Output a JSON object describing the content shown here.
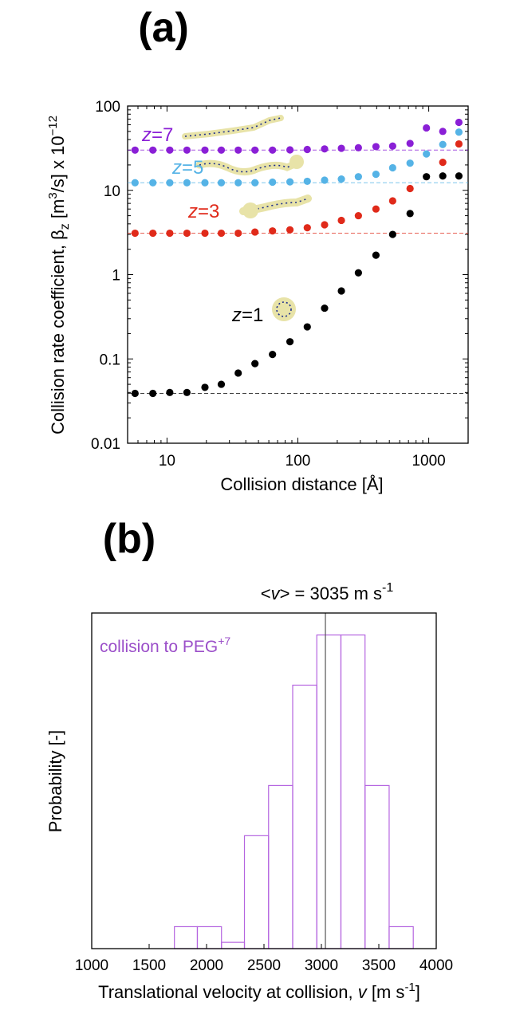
{
  "figure": {
    "panel_a_label": "(a)",
    "panel_b_label": "(b)"
  },
  "chart_data": [
    {
      "type": "scatter",
      "panel": "(a)",
      "xscale": "log",
      "yscale": "log",
      "xlabel": "Collision distance [Å]",
      "ylabel_parts": {
        "pre": "Collision rate coefficient, β",
        "sub": "z",
        "mid": " [m",
        "sup": "3",
        "post": "/s] x 10",
        "exp": "−12"
      },
      "xlim": [
        5,
        2000
      ],
      "ylim": [
        0.01,
        100
      ],
      "x_ticks": [
        {
          "value": 10,
          "label": "10"
        },
        {
          "value": 100,
          "label": "100"
        },
        {
          "value": 1000,
          "label": "1000"
        }
      ],
      "y_ticks": [
        {
          "value": 0.01,
          "label": "0.01"
        },
        {
          "value": 0.1,
          "label": "0.1"
        },
        {
          "value": 1,
          "label": "1"
        },
        {
          "value": 10,
          "label": "10"
        },
        {
          "value": 100,
          "label": "100"
        }
      ],
      "series": [
        {
          "name": "z=7",
          "z_symbol": "z",
          "z_value": "=7",
          "color": "#8a1fd6",
          "baseline": 30,
          "x": [
            5.7,
            7.8,
            10.5,
            14.2,
            19.5,
            26,
            35,
            47,
            64,
            87,
            118,
            160,
            215,
            290,
            395,
            530,
            720,
            960,
            1280,
            1700
          ],
          "y": [
            30,
            30,
            30,
            30,
            30,
            30,
            30,
            30,
            30,
            30.2,
            30.5,
            31,
            31.5,
            32,
            33,
            33.5,
            36,
            55,
            50,
            64
          ]
        },
        {
          "name": "z=5",
          "z_symbol": "z",
          "z_value": "=5",
          "color": "#55b3e6",
          "baseline": 12.3,
          "x": [
            5.7,
            7.8,
            10.5,
            14.2,
            19.5,
            26,
            35,
            47,
            64,
            87,
            118,
            160,
            215,
            290,
            395,
            530,
            720,
            960,
            1280,
            1700
          ],
          "y": [
            12.3,
            12.3,
            12.3,
            12.3,
            12.3,
            12.3,
            12.3,
            12.3,
            12.5,
            12.6,
            12.8,
            13.2,
            13.6,
            14.5,
            15.5,
            18.5,
            21,
            27,
            35,
            49
          ]
        },
        {
          "name": "z=3",
          "z_symbol": "z",
          "z_value": "=3",
          "color": "#e02a1a",
          "baseline": 3.1,
          "x": [
            5.7,
            7.8,
            10.5,
            14.2,
            19.5,
            26,
            35,
            47,
            64,
            87,
            118,
            160,
            215,
            290,
            395,
            530,
            720,
            1280,
            1700
          ],
          "y": [
            3.1,
            3.1,
            3.1,
            3.1,
            3.1,
            3.1,
            3.1,
            3.2,
            3.3,
            3.4,
            3.6,
            3.9,
            4.4,
            5.0,
            6.0,
            7.5,
            10.5,
            21.5,
            35.5
          ]
        },
        {
          "name": "z=1",
          "z_symbol": "z",
          "z_value": "=1",
          "color": "#000000",
          "baseline": 0.039,
          "x": [
            5.7,
            7.8,
            10.5,
            14.2,
            19.5,
            26,
            35,
            47,
            64,
            87,
            118,
            160,
            215,
            290,
            395,
            530,
            720,
            960,
            1280,
            1700
          ],
          "y": [
            0.039,
            0.039,
            0.04,
            0.04,
            0.046,
            0.05,
            0.068,
            0.088,
            0.113,
            0.16,
            0.24,
            0.4,
            0.64,
            1.05,
            1.7,
            3.0,
            5.3,
            14.5,
            14.8,
            14.8
          ]
        }
      ]
    },
    {
      "type": "bar",
      "panel": "(b)",
      "title_parts": {
        "pre": "<",
        "var": "v",
        "post": "> = 3035 m s",
        "exp": "-1"
      },
      "mean": 3035,
      "annotation_parts": {
        "pre": "collision to PEG",
        "sup": "+7"
      },
      "annotation_color": "#9b4fc9",
      "bar_color": "#b565e0",
      "ylabel": "Probability [-]",
      "xlabel_parts": {
        "pre": "Translational velocity at collision, ",
        "var": "v",
        "post": " [m s",
        "exp": "-1",
        "end": "]"
      },
      "xlim": [
        1000,
        4000
      ],
      "ylim": [
        0,
        1.07
      ],
      "x_ticks": [
        "1000",
        "1500",
        "2000",
        "2500",
        "3000",
        "3500",
        "4000"
      ],
      "bins": [
        {
          "x0": 1720,
          "x1": 1920,
          "value": 0.07
        },
        {
          "x0": 1920,
          "x1": 2130,
          "value": 0.07
        },
        {
          "x0": 2130,
          "x1": 2330,
          "value": 0.02
        },
        {
          "x0": 2330,
          "x1": 2540,
          "value": 0.36
        },
        {
          "x0": 2540,
          "x1": 2750,
          "value": 0.52
        },
        {
          "x0": 2750,
          "x1": 2960,
          "value": 0.84
        },
        {
          "x0": 2960,
          "x1": 3170,
          "value": 1.0
        },
        {
          "x0": 3170,
          "x1": 3380,
          "value": 1.0
        },
        {
          "x0": 3380,
          "x1": 3590,
          "value": 0.52
        },
        {
          "x0": 3590,
          "x1": 3800,
          "value": 0.07
        }
      ]
    }
  ]
}
